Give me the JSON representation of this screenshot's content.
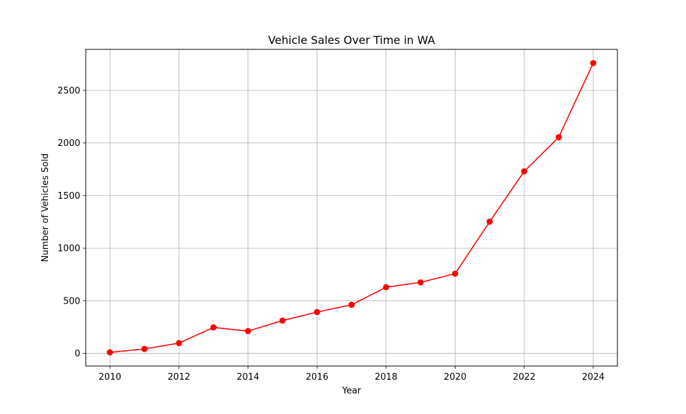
{
  "chart_data": {
    "type": "line",
    "title": "Vehicle Sales Over Time in WA",
    "xlabel": "Year",
    "ylabel": "Number of Vehicles Sold",
    "grid": true,
    "xlim": [
      2009.3,
      2024.7
    ],
    "ylim": [
      -120,
      2890
    ],
    "xticks": [
      2010,
      2012,
      2014,
      2016,
      2018,
      2020,
      2022,
      2024
    ],
    "yticks": [
      0,
      500,
      1000,
      1500,
      2000,
      2500
    ],
    "series": [
      {
        "color": "#ff0000",
        "marker": "circle",
        "x": [
          2010,
          2011,
          2012,
          2013,
          2014,
          2015,
          2016,
          2017,
          2018,
          2019,
          2020,
          2021,
          2022,
          2023,
          2024
        ],
        "y": [
          10,
          42,
          98,
          247,
          212,
          312,
          393,
          462,
          629,
          675,
          758,
          1252,
          1730,
          2055,
          2760
        ]
      }
    ],
    "colors": {
      "grid": "#b0b0b0",
      "axes": "#000000",
      "line": "#ff0000"
    }
  }
}
